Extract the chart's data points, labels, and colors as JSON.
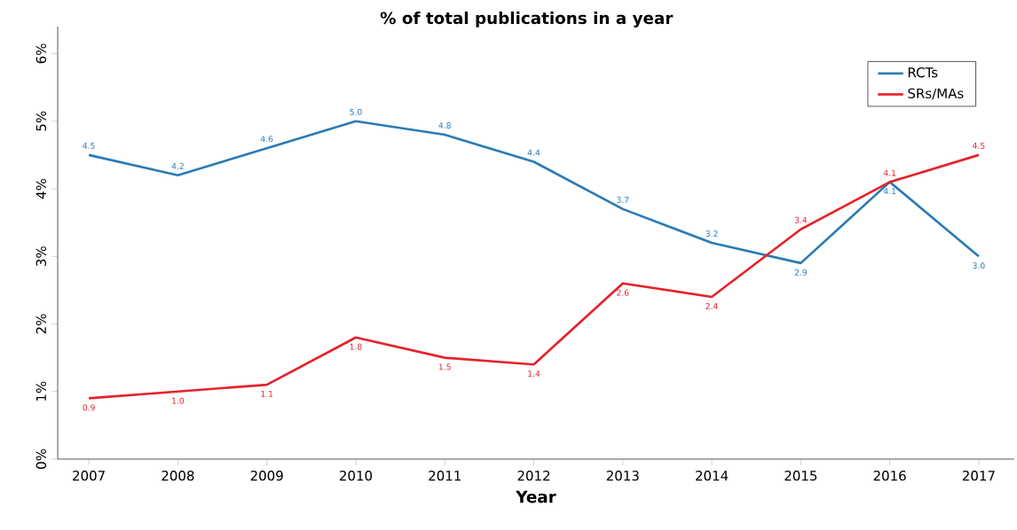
{
  "chart_data": {
    "type": "line",
    "title": "% of total publications in a year",
    "xlabel": "Year",
    "x": [
      2007,
      2008,
      2009,
      2010,
      2011,
      2012,
      2013,
      2014,
      2015,
      2016,
      2017
    ],
    "series": [
      {
        "name": "RCTs",
        "color": "#2b7bb4",
        "values": [
          4.5,
          4.2,
          4.6,
          5.0,
          4.8,
          4.4,
          3.7,
          3.2,
          2.9,
          4.1,
          3.0
        ],
        "value_labels": [
          "4.5",
          "4.2",
          "4.6",
          "5.0",
          "4.8",
          "4.4",
          "3.7",
          "3.2",
          "2.9",
          "4.1",
          "3.0"
        ]
      },
      {
        "name": "SRs/MAs",
        "color": "#e3232c",
        "values": [
          0.9,
          1.0,
          1.1,
          1.8,
          1.5,
          1.4,
          2.6,
          2.4,
          3.4,
          4.1,
          4.5
        ],
        "value_labels": [
          "0.9",
          "1.0",
          "1.1",
          "1.8",
          "1.5",
          "1.4",
          "2.6",
          "2.4",
          "3.4",
          "4.1",
          "4.5"
        ]
      }
    ],
    "xlim": [
      2006.65,
      2017.4
    ],
    "ylim": [
      0,
      6.4
    ],
    "xticks": [
      2007,
      2008,
      2009,
      2010,
      2011,
      2012,
      2013,
      2014,
      2015,
      2016,
      2017
    ],
    "yticks": [
      {
        "value": 0,
        "label": "0%"
      },
      {
        "value": 1,
        "label": "1%"
      },
      {
        "value": 2,
        "label": "2%"
      },
      {
        "value": 3,
        "label": "3%"
      },
      {
        "value": 4,
        "label": "4%"
      },
      {
        "value": 5,
        "label": "5%"
      },
      {
        "value": 6,
        "label": "6%"
      }
    ],
    "legend": "top right",
    "grid": false,
    "marker": "none",
    "line_style": "solid"
  }
}
